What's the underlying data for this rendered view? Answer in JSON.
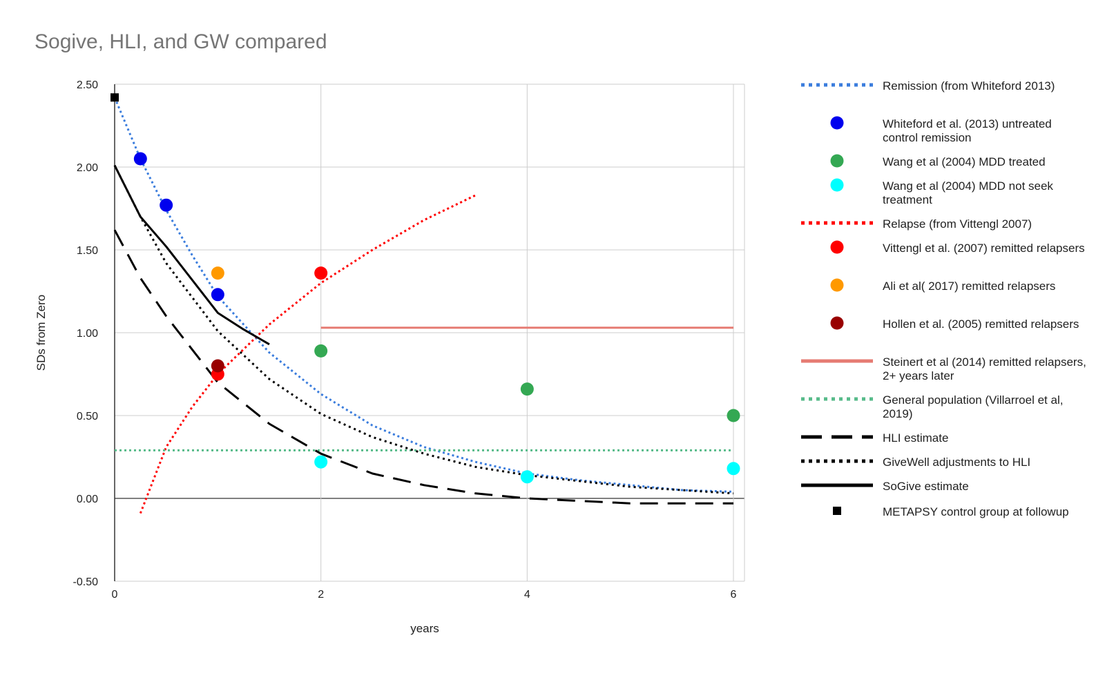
{
  "chart_data": {
    "type": "line",
    "title": "Sogive, HLI, and GW compared",
    "xlabel": "years",
    "ylabel": "SDs from Zero",
    "xlim": [
      0,
      6
    ],
    "ylim": [
      -0.5,
      2.5
    ],
    "xticks": [
      "0",
      "2",
      "4",
      "6"
    ],
    "yticks": [
      "2.50",
      "2.00",
      "1.50",
      "1.00",
      "0.50",
      "0.00",
      "-0.50"
    ],
    "grid": true,
    "legend_position": "right",
    "series": [
      {
        "name": "Remission (from Whiteford 2013)",
        "kind": "line",
        "style": "dotted",
        "color": "#3b7ddd",
        "x": [
          0,
          0.25,
          0.5,
          0.75,
          1,
          1.5,
          2,
          2.5,
          3,
          3.5,
          4,
          4.5,
          5,
          5.5,
          6
        ],
        "y": [
          2.42,
          2.05,
          1.74,
          1.47,
          1.22,
          0.88,
          0.63,
          0.44,
          0.31,
          0.22,
          0.15,
          0.11,
          0.08,
          0.05,
          0.04
        ]
      },
      {
        "name": "Whiteford et al. (2013) untreated control remission",
        "kind": "point",
        "color": "#0000ee",
        "x": [
          0.25,
          0.5,
          1
        ],
        "y": [
          2.05,
          1.77,
          1.23
        ]
      },
      {
        "name": "Wang et al (2004) MDD treated",
        "kind": "point",
        "color": "#34a853",
        "x": [
          2,
          4,
          6
        ],
        "y": [
          0.89,
          0.66,
          0.5
        ]
      },
      {
        "name": "Wang et al (2004) MDD not seek treatment",
        "kind": "point",
        "color": "#00ffff",
        "x": [
          2,
          4,
          6
        ],
        "y": [
          0.22,
          0.13,
          0.18
        ]
      },
      {
        "name": "Relapse (from Vittengl 2007)",
        "kind": "line",
        "style": "dotted",
        "color": "#ff0000",
        "x": [
          0.25,
          0.5,
          0.75,
          1,
          1.5,
          2,
          2.5,
          3,
          3.5
        ],
        "y": [
          -0.09,
          0.31,
          0.55,
          0.75,
          1.05,
          1.3,
          1.5,
          1.68,
          1.83
        ]
      },
      {
        "name": "Vittengl et al. (2007) remitted relapsers",
        "kind": "point",
        "color": "#ff0000",
        "x": [
          1,
          2
        ],
        "y": [
          0.75,
          1.36
        ]
      },
      {
        "name": "Ali et al( 2017) remitted relapsers",
        "kind": "point",
        "color": "#ff9900",
        "x": [
          1
        ],
        "y": [
          1.36
        ]
      },
      {
        "name": "Hollen et al. (2005) remitted relapsers",
        "kind": "point",
        "color": "#990000",
        "x": [
          1
        ],
        "y": [
          0.8
        ]
      },
      {
        "name": "Steinert et al (2014) remitted relapsers, 2+ years later",
        "kind": "line",
        "style": "solid",
        "color": "#e67c73",
        "x": [
          2,
          6
        ],
        "y": [
          1.03,
          1.03
        ]
      },
      {
        "name": "General population (Villarroel et al, 2019)",
        "kind": "line",
        "style": "dotted",
        "color": "#57bb8a",
        "x": [
          0,
          6
        ],
        "y": [
          0.29,
          0.29
        ]
      },
      {
        "name": "HLI estimate",
        "kind": "line",
        "style": "dashed",
        "color": "#000000",
        "x": [
          0,
          0.25,
          0.5,
          1,
          1.5,
          2,
          2.5,
          3,
          3.5,
          4,
          5,
          6
        ],
        "y": [
          1.62,
          1.33,
          1.1,
          0.7,
          0.45,
          0.27,
          0.15,
          0.08,
          0.03,
          0.0,
          -0.03,
          -0.03
        ]
      },
      {
        "name": "GiveWell adjustments to HLI",
        "kind": "line",
        "style": "dotted",
        "color": "#000000",
        "x": [
          0,
          0.25,
          0.5,
          1,
          1.5,
          2,
          2.5,
          3,
          3.5,
          4,
          5,
          6
        ],
        "y": [
          2.01,
          1.7,
          1.42,
          1.01,
          0.72,
          0.51,
          0.37,
          0.27,
          0.19,
          0.14,
          0.07,
          0.03
        ]
      },
      {
        "name": "SoGive estimate",
        "kind": "line",
        "style": "solid",
        "color": "#000000",
        "x": [
          0,
          0.25,
          0.5,
          1,
          1.25,
          1.5
        ],
        "y": [
          2.01,
          1.7,
          1.52,
          1.12,
          1.02,
          0.93
        ]
      },
      {
        "name": "METAPSY control group at followup",
        "kind": "square",
        "color": "#000000",
        "x": [
          0
        ],
        "y": [
          2.42
        ]
      }
    ]
  }
}
